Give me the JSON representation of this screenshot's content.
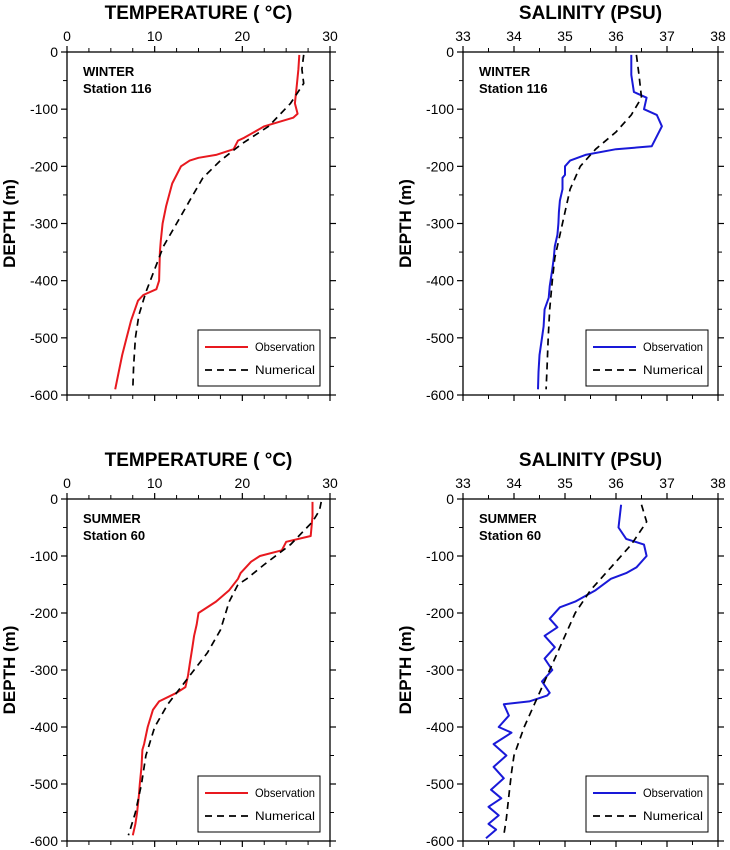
{
  "chart_data": [
    {
      "type": "line",
      "title": "TEMPERATURE ( °C)",
      "ylabel": "DEPTH (m)",
      "xlim": [
        0,
        30
      ],
      "ylim": [
        -600,
        0
      ],
      "xticks": [
        "0",
        "10",
        "20",
        "30"
      ],
      "yticks": [
        "0",
        "-100",
        "-200",
        "-300",
        "-400",
        "-500",
        "-600"
      ],
      "annotation": [
        "WINTER",
        "Station 116"
      ],
      "legend": {
        "position": "bottom-right",
        "entries": [
          "Observation",
          "Numerical"
        ]
      },
      "series": [
        {
          "name": "Observation",
          "color": "#e8191f",
          "style": "solid",
          "x": [
            26.5,
            26.4,
            26.2,
            26.0,
            26.3,
            25.8,
            22.5,
            20.2,
            19.5,
            19.0,
            17.0,
            15.0,
            14.0,
            13.0,
            12.0,
            11.3,
            10.9,
            10.7,
            10.6,
            10.5,
            10.2,
            8.7,
            8.1,
            7.3,
            6.8,
            6.3,
            5.9,
            5.5
          ],
          "y": [
            -5,
            -30,
            -60,
            -90,
            -108,
            -115,
            -130,
            -150,
            -155,
            -170,
            -180,
            -185,
            -190,
            -200,
            -230,
            -270,
            -300,
            -330,
            -350,
            -400,
            -415,
            -425,
            -435,
            -470,
            -500,
            -530,
            -560,
            -590
          ]
        },
        {
          "name": "Numerical",
          "color": "#000000",
          "style": "dashed",
          "x": [
            27.0,
            26.8,
            27.0,
            25.5,
            23.0,
            20.0,
            17.5,
            15.5,
            14.0,
            12.5,
            11.0,
            10.0,
            9.0,
            8.2,
            7.8,
            7.6,
            7.5
          ],
          "y": [
            -5,
            -30,
            -55,
            -90,
            -130,
            -160,
            -190,
            -220,
            -260,
            -300,
            -340,
            -380,
            -420,
            -460,
            -500,
            -550,
            -590
          ]
        }
      ]
    },
    {
      "type": "line",
      "title": "SALINITY (PSU)",
      "ylabel": "DEPTH (m)",
      "xlim": [
        33,
        38
      ],
      "ylim": [
        -600,
        0
      ],
      "xticks": [
        "33",
        "34",
        "35",
        "36",
        "37",
        "38"
      ],
      "yticks": [
        "0",
        "-100",
        "-200",
        "-300",
        "-400",
        "-500",
        "-600"
      ],
      "annotation": [
        "WINTER",
        "Station 116"
      ],
      "legend": {
        "position": "bottom-right",
        "entries": [
          "Observation",
          "Numerical"
        ]
      },
      "series": [
        {
          "name": "Observation",
          "color": "#1919d8",
          "style": "solid",
          "x": [
            36.3,
            36.3,
            36.35,
            36.6,
            36.55,
            36.8,
            36.9,
            36.7,
            36.0,
            35.4,
            35.1,
            35.0,
            35.0,
            34.95,
            34.95,
            34.9,
            34.88,
            34.87,
            34.85,
            34.8,
            34.78,
            34.75,
            34.7,
            34.68,
            34.6,
            34.58,
            34.55,
            34.5,
            34.48,
            34.47
          ],
          "y": [
            -5,
            -40,
            -70,
            -80,
            -100,
            -110,
            -130,
            -165,
            -170,
            -180,
            -190,
            -200,
            -215,
            -220,
            -240,
            -260,
            -280,
            -300,
            -320,
            -340,
            -360,
            -380,
            -410,
            -430,
            -450,
            -480,
            -500,
            -530,
            -560,
            -590
          ]
        },
        {
          "name": "Numerical",
          "color": "#000000",
          "style": "dashed",
          "x": [
            36.4,
            36.45,
            36.5,
            36.3,
            36.0,
            35.6,
            35.3,
            35.1,
            35.0,
            34.9,
            34.8,
            34.75,
            34.7,
            34.67,
            34.65,
            34.63
          ],
          "y": [
            -5,
            -40,
            -80,
            -110,
            -140,
            -170,
            -200,
            -240,
            -280,
            -320,
            -360,
            -400,
            -450,
            -500,
            -550,
            -590
          ]
        }
      ]
    },
    {
      "type": "line",
      "title": "TEMPERATURE ( °C)",
      "ylabel": "DEPTH (m)",
      "xlim": [
        0,
        30
      ],
      "ylim": [
        -600,
        0
      ],
      "xticks": [
        "0",
        "10",
        "20",
        "30"
      ],
      "yticks": [
        "0",
        "-100",
        "-200",
        "-300",
        "-400",
        "-500",
        "-600"
      ],
      "annotation": [
        "SUMMER",
        "Station 60"
      ],
      "legend": {
        "position": "bottom-right",
        "entries": [
          "Observation",
          "Numerical"
        ]
      },
      "series": [
        {
          "name": "Observation",
          "color": "#e8191f",
          "style": "solid",
          "x": [
            28.0,
            28.0,
            27.8,
            25.0,
            24.5,
            22.0,
            21.0,
            19.8,
            19.5,
            18.5,
            17.0,
            15.0,
            14.8,
            14.5,
            14.3,
            14.0,
            13.8,
            13.5,
            12.5,
            10.5,
            9.8,
            9.2,
            8.8,
            8.6,
            8.5,
            8.3,
            8.2,
            8.0,
            7.8,
            7.5
          ],
          "y": [
            -5,
            -30,
            -65,
            -75,
            -90,
            -100,
            -110,
            -130,
            -140,
            -160,
            -180,
            -200,
            -220,
            -240,
            -260,
            -290,
            -310,
            -330,
            -340,
            -355,
            -370,
            -400,
            -430,
            -440,
            -470,
            -500,
            -520,
            -550,
            -570,
            -590
          ]
        },
        {
          "name": "Numerical",
          "color": "#000000",
          "style": "dashed",
          "x": [
            29.0,
            28.8,
            28.0,
            25.5,
            22.5,
            20.5,
            19.5,
            18.5,
            17.5,
            16.0,
            14.5,
            13.0,
            11.5,
            10.0,
            9.0,
            8.5,
            7.8,
            7.0
          ],
          "y": [
            -5,
            -20,
            -40,
            -80,
            -115,
            -140,
            -150,
            -180,
            -230,
            -270,
            -300,
            -330,
            -360,
            -400,
            -450,
            -500,
            -550,
            -590
          ]
        }
      ]
    },
    {
      "type": "line",
      "title": "SALINITY (PSU)",
      "ylabel": "DEPTH (m)",
      "xlim": [
        33,
        38
      ],
      "ylim": [
        -600,
        0
      ],
      "xticks": [
        "33",
        "34",
        "35",
        "36",
        "37",
        "38"
      ],
      "yticks": [
        "0",
        "-100",
        "-200",
        "-300",
        "-400",
        "-500",
        "-600"
      ],
      "annotation": [
        "SUMMER",
        "Station 60"
      ],
      "legend": {
        "position": "bottom-right",
        "entries": [
          "Observation",
          "Numerical"
        ]
      },
      "series": [
        {
          "name": "Observation",
          "color": "#1919d8",
          "style": "solid",
          "x": [
            36.1,
            36.05,
            36.2,
            36.55,
            36.6,
            36.4,
            36.2,
            35.9,
            35.6,
            35.2,
            34.9,
            34.7,
            34.85,
            34.6,
            34.8,
            34.6,
            34.75,
            34.55,
            34.7,
            34.65,
            34.3,
            33.8,
            33.9,
            33.7,
            33.95,
            33.6,
            33.85,
            33.6,
            33.8,
            33.55,
            33.75,
            33.5,
            33.7,
            33.5,
            33.65,
            33.45
          ],
          "y": [
            -10,
            -50,
            -70,
            -80,
            -100,
            -120,
            -130,
            -140,
            -160,
            -180,
            -190,
            -210,
            -225,
            -240,
            -260,
            -280,
            -300,
            -320,
            -340,
            -345,
            -355,
            -360,
            -380,
            -400,
            -410,
            -430,
            -450,
            -470,
            -490,
            -510,
            -525,
            -540,
            -555,
            -570,
            -580,
            -595
          ]
        },
        {
          "name": "Numerical",
          "color": "#000000",
          "style": "dashed",
          "x": [
            36.5,
            36.6,
            36.3,
            35.9,
            35.5,
            35.2,
            35.0,
            34.8,
            34.6,
            34.4,
            34.2,
            34.0,
            33.95,
            33.9,
            33.85,
            33.8
          ],
          "y": [
            -10,
            -40,
            -80,
            -120,
            -160,
            -200,
            -240,
            -280,
            -320,
            -360,
            -400,
            -450,
            -480,
            -520,
            -560,
            -590
          ]
        }
      ]
    }
  ]
}
